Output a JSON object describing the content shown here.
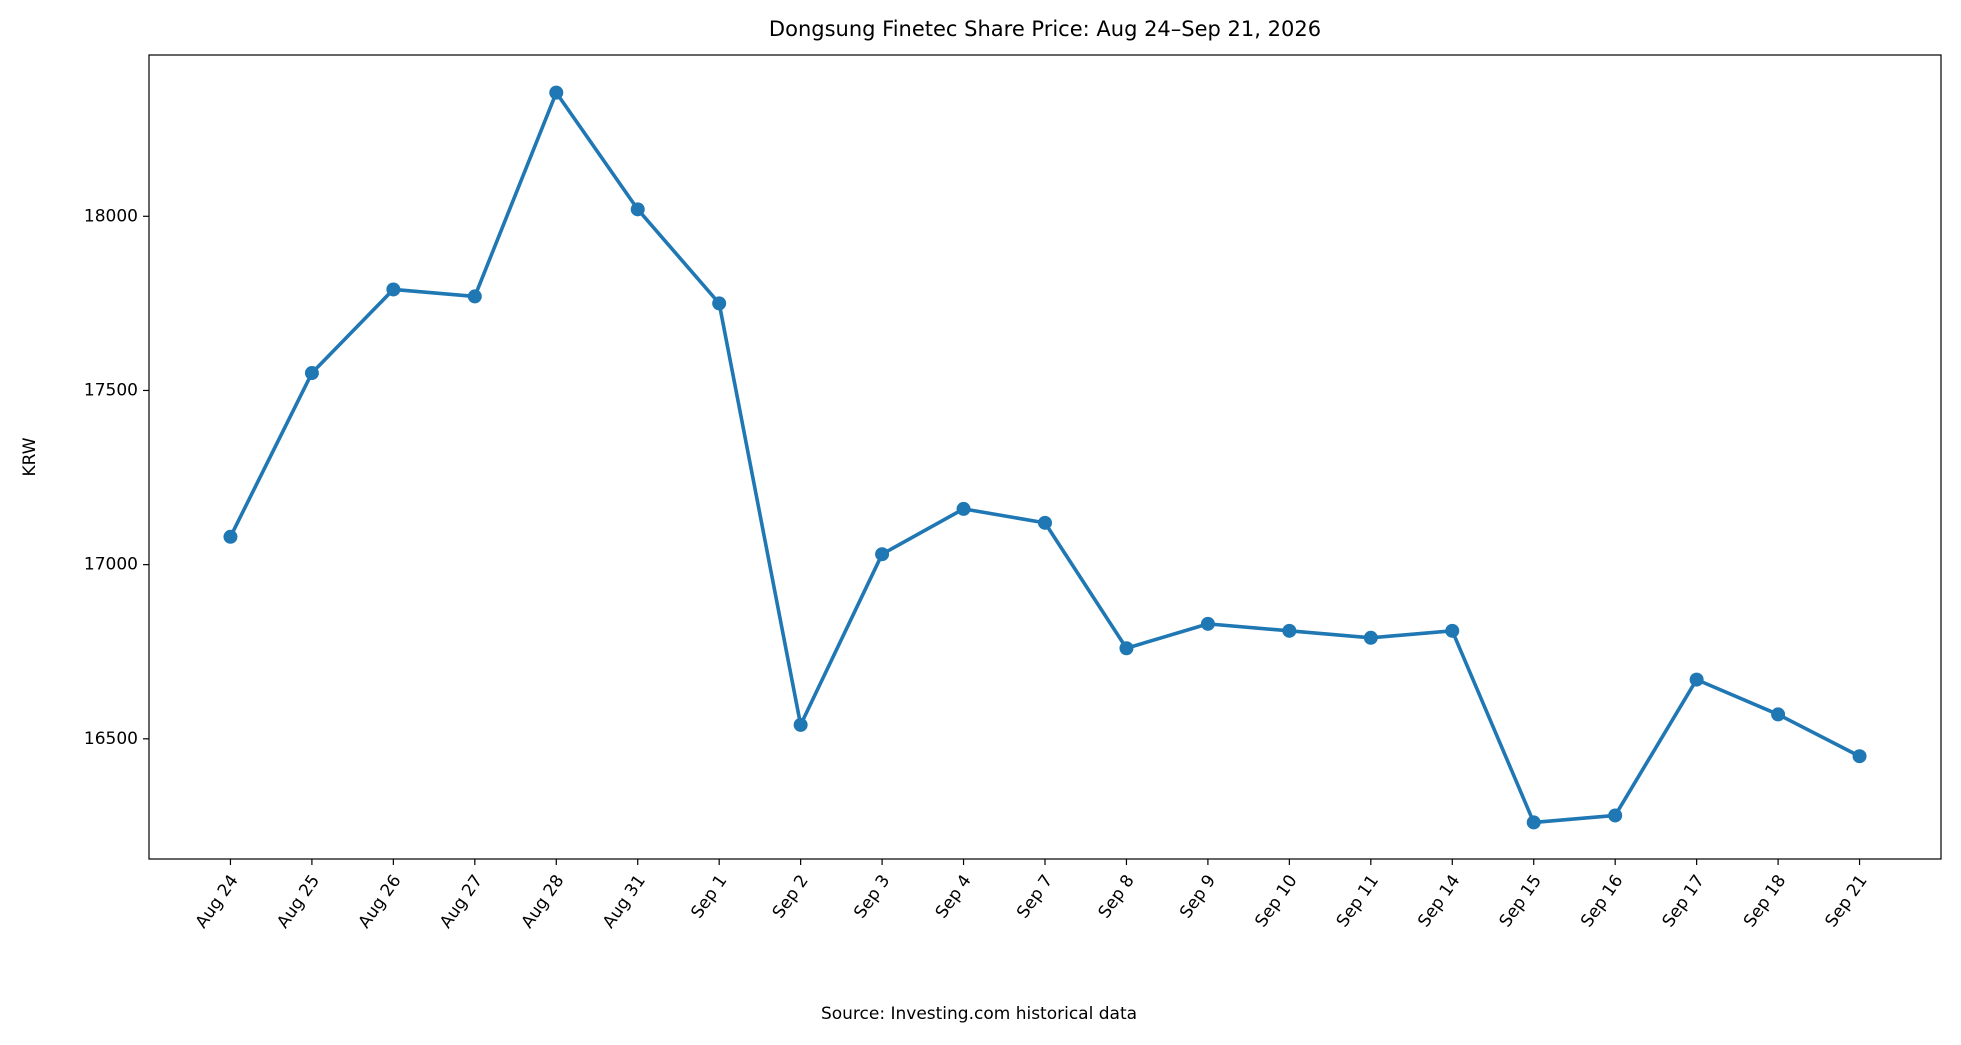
{
  "chart_data": {
    "type": "line",
    "title": "Dongsung Finetec Share Price: Aug 24–Sep 21, 2026",
    "y_label": "KRW",
    "source": "Source: Investing.com historical data",
    "categories": [
      "Aug 24",
      "Aug 25",
      "Aug 26",
      "Aug 27",
      "Aug 28",
      "Aug 31",
      "Sep 1",
      "Sep 2",
      "Sep 3",
      "Sep 4",
      "Sep 7",
      "Sep 8",
      "Sep 9",
      "Sep 10",
      "Sep 11",
      "Sep 14",
      "Sep 15",
      "Sep 16",
      "Sep 17",
      "Sep 18",
      "Sep 21"
    ],
    "values": [
      17080,
      17550,
      17790,
      17770,
      18355,
      18020,
      17750,
      16540,
      17030,
      17160,
      17120,
      16760,
      16830,
      16810,
      16790,
      16810,
      16260,
      16280,
      16670,
      16570,
      16450
    ],
    "color": "#1f77b4",
    "ylim": [
      16155,
      18463
    ],
    "yticks": [
      16500,
      17000,
      17500,
      18000
    ],
    "grid": false
  }
}
